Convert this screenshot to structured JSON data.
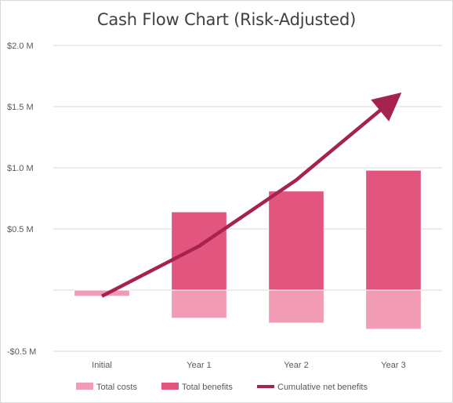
{
  "chart_data": {
    "type": "bar",
    "title": "Cash Flow Chart (Risk-Adjusted)",
    "categories": [
      "Initial",
      "Year 1",
      "Year 2",
      "Year 3"
    ],
    "series": [
      {
        "name": "Total costs",
        "kind": "bar",
        "color": "#f29bb4",
        "values": [
          -0.05,
          -0.23,
          -0.27,
          -0.32
        ]
      },
      {
        "name": "Total benefits",
        "kind": "bar",
        "color": "#e2557f",
        "values": [
          0,
          0.64,
          0.81,
          0.98
        ]
      },
      {
        "name": "Cumulative net benefits",
        "kind": "line",
        "color": "#a6234f",
        "values": [
          -0.05,
          0.36,
          0.9,
          1.56
        ]
      }
    ],
    "ylim": [
      -0.5,
      2.0
    ],
    "yticks": [
      {
        "value": 2.0,
        "label": "$2.0 M"
      },
      {
        "value": 1.5,
        "label": "$1.5 M"
      },
      {
        "value": 1.0,
        "label": "$1.0 M"
      },
      {
        "value": 0.5,
        "label": "$0.5 M"
      },
      {
        "value": 0,
        "label": ""
      },
      {
        "value": -0.5,
        "label": "-$0.5 M"
      }
    ],
    "grid": true,
    "legend_position": "bottom"
  }
}
